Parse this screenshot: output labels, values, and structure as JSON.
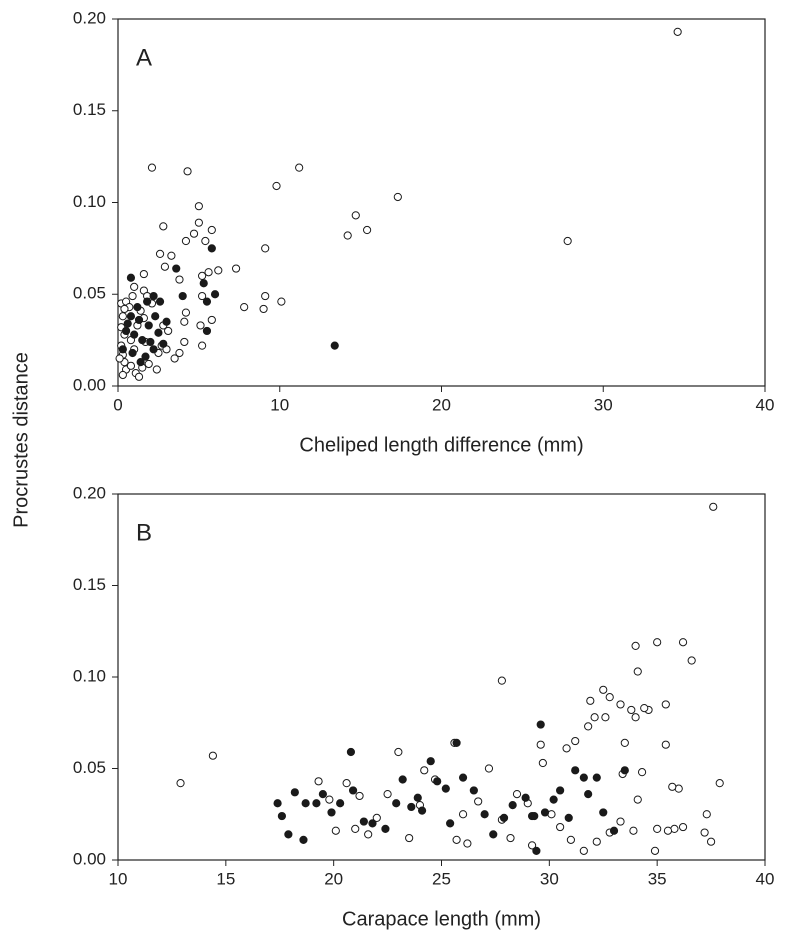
{
  "chart_data": [
    {
      "type": "scatter",
      "panel_label": "A",
      "x_label": "Cheliped length difference (mm)",
      "y_label": "Procrustes distance",
      "xlim": [
        0,
        40
      ],
      "xticks": [
        0,
        10,
        20,
        30,
        40
      ],
      "ylim": [
        0,
        0.2
      ],
      "yticks": [
        {
          "value": 0,
          "label": "0.00"
        },
        {
          "value": 0.05,
          "label": "0.05"
        },
        {
          "value": 0.1,
          "label": "0.10"
        },
        {
          "value": 0.15,
          "label": "0.15"
        },
        {
          "value": 0.2,
          "label": "0.20"
        }
      ],
      "series": [
        {
          "marker": "open",
          "color": "#1a1a1a",
          "x": [
            34.6,
            2.1,
            11.2,
            4.3,
            9.8,
            17.3,
            14.7,
            5.0,
            5.0,
            15.4,
            14.2,
            5.8,
            2.8,
            4.7,
            4.2,
            5.4,
            27.8,
            9.1,
            3.3,
            2.6,
            6.2,
            7.3,
            5.6,
            3.8,
            5.2,
            1.6,
            2.9,
            9.1,
            10.1,
            7.8,
            9.0,
            4.2,
            5.2,
            5.8,
            5.1,
            5.2,
            4.1,
            3.8,
            3.5,
            4.1,
            0.2,
            0.5,
            0.7,
            1.0,
            1.6,
            1.8,
            0.4,
            0.3,
            0.2,
            0.4,
            0.2,
            0.3,
            0.4,
            0.5,
            0.3,
            0.8,
            1.1,
            1.3,
            1.5,
            1.9,
            2.5,
            2.7,
            0.8,
            1.0,
            1.2,
            1.4,
            1.6,
            2.1,
            2.8,
            3.1,
            2.4,
            3.0,
            0.9,
            0.1,
            1.7
          ],
          "values": [
            0.193,
            0.119,
            0.119,
            0.117,
            0.109,
            0.103,
            0.093,
            0.098,
            0.089,
            0.085,
            0.082,
            0.085,
            0.087,
            0.083,
            0.079,
            0.079,
            0.079,
            0.075,
            0.071,
            0.072,
            0.063,
            0.064,
            0.062,
            0.058,
            0.06,
            0.061,
            0.065,
            0.049,
            0.046,
            0.043,
            0.042,
            0.04,
            0.049,
            0.036,
            0.033,
            0.022,
            0.024,
            0.018,
            0.015,
            0.035,
            0.045,
            0.046,
            0.043,
            0.054,
            0.052,
            0.049,
            0.042,
            0.038,
            0.032,
            0.028,
            0.022,
            0.017,
            0.013,
            0.009,
            0.006,
            0.011,
            0.007,
            0.005,
            0.01,
            0.012,
            0.018,
            0.022,
            0.025,
            0.02,
            0.033,
            0.041,
            0.037,
            0.045,
            0.033,
            0.03,
            0.009,
            0.02,
            0.049,
            0.015,
            0.024
          ]
        },
        {
          "marker": "filled",
          "color": "#1a1a1a",
          "x": [
            0.8,
            3.6,
            5.8,
            4.0,
            5.5,
            5.5,
            5.3,
            6.0,
            13.4,
            2.2,
            2.6,
            1.8,
            0.8,
            1.3,
            1.9,
            2.3,
            0.5,
            1.0,
            1.5,
            2.0,
            2.5,
            3.0,
            0.3,
            0.9,
            1.7,
            2.2,
            0.6,
            1.2,
            2.8,
            1.4
          ],
          "values": [
            0.059,
            0.064,
            0.075,
            0.049,
            0.046,
            0.03,
            0.056,
            0.05,
            0.022,
            0.049,
            0.046,
            0.046,
            0.038,
            0.036,
            0.033,
            0.038,
            0.03,
            0.028,
            0.025,
            0.024,
            0.029,
            0.035,
            0.02,
            0.018,
            0.016,
            0.02,
            0.034,
            0.043,
            0.023,
            0.013
          ]
        }
      ]
    },
    {
      "type": "scatter",
      "panel_label": "B",
      "x_label": "Carapace length (mm)",
      "xlim": [
        10,
        40
      ],
      "xticks": [
        10,
        15,
        20,
        25,
        30,
        35,
        40
      ],
      "ylim": [
        0,
        0.2
      ],
      "yticks": [
        {
          "value": 0,
          "label": "0.00"
        },
        {
          "value": 0.05,
          "label": "0.05"
        },
        {
          "value": 0.1,
          "label": "0.10"
        },
        {
          "value": 0.15,
          "label": "0.15"
        },
        {
          "value": 0.2,
          "label": "0.20"
        }
      ],
      "series": [
        {
          "marker": "open",
          "color": "#1a1a1a",
          "x": [
            37.6,
            12.9,
            14.4,
            27.8,
            34.0,
            35.0,
            36.2,
            36.6,
            34.1,
            32.5,
            31.9,
            32.8,
            33.3,
            35.4,
            34.6,
            33.8,
            34.4,
            32.1,
            32.6,
            31.8,
            34.0,
            30.8,
            31.2,
            33.5,
            35.4,
            37.9,
            36.0,
            35.7,
            37.3,
            37.2,
            37.5,
            35.8,
            35.5,
            35.0,
            34.9,
            33.9,
            34.1,
            33.3,
            32.8,
            32.2,
            31.6,
            31.0,
            30.1,
            29.7,
            29.6,
            29.0,
            28.5,
            27.8,
            27.2,
            26.7,
            26.0,
            25.7,
            26.2,
            24.7,
            25.6,
            24.2,
            23.0,
            22.5,
            21.2,
            20.6,
            20.1,
            19.8,
            19.3,
            21.0,
            21.6,
            22.0,
            23.5,
            24.0,
            28.2,
            29.2,
            30.5,
            33.4,
            34.3,
            36.2
          ],
          "values": [
            0.193,
            0.042,
            0.057,
            0.098,
            0.117,
            0.119,
            0.119,
            0.109,
            0.103,
            0.093,
            0.087,
            0.089,
            0.085,
            0.085,
            0.082,
            0.082,
            0.083,
            0.078,
            0.078,
            0.073,
            0.078,
            0.061,
            0.065,
            0.064,
            0.063,
            0.042,
            0.039,
            0.04,
            0.025,
            0.015,
            0.01,
            0.017,
            0.016,
            0.017,
            0.005,
            0.016,
            0.033,
            0.021,
            0.015,
            0.01,
            0.005,
            0.011,
            0.025,
            0.053,
            0.063,
            0.031,
            0.036,
            0.022,
            0.05,
            0.032,
            0.025,
            0.011,
            0.009,
            0.044,
            0.064,
            0.049,
            0.059,
            0.036,
            0.035,
            0.042,
            0.016,
            0.033,
            0.043,
            0.017,
            0.014,
            0.023,
            0.012,
            0.03,
            0.012,
            0.008,
            0.018,
            0.047,
            0.048,
            0.018
          ]
        },
        {
          "marker": "filled",
          "color": "#1a1a1a",
          "x": [
            17.4,
            17.6,
            17.9,
            18.6,
            18.7,
            18.2,
            19.2,
            19.5,
            19.9,
            20.3,
            20.8,
            20.9,
            21.4,
            21.8,
            22.4,
            22.9,
            23.2,
            23.6,
            24.1,
            24.5,
            24.8,
            25.2,
            25.4,
            25.7,
            26.5,
            27.0,
            27.4,
            27.9,
            28.3,
            28.9,
            29.2,
            29.4,
            29.6,
            29.8,
            30.2,
            30.5,
            30.9,
            31.2,
            31.6,
            31.8,
            32.2,
            32.5,
            33.0,
            33.5,
            23.9,
            26.0,
            29.3
          ],
          "values": [
            0.031,
            0.024,
            0.014,
            0.011,
            0.031,
            0.037,
            0.031,
            0.036,
            0.026,
            0.031,
            0.059,
            0.038,
            0.021,
            0.02,
            0.017,
            0.031,
            0.044,
            0.029,
            0.027,
            0.054,
            0.043,
            0.039,
            0.02,
            0.064,
            0.038,
            0.025,
            0.014,
            0.023,
            0.03,
            0.034,
            0.024,
            0.005,
            0.074,
            0.026,
            0.033,
            0.038,
            0.023,
            0.049,
            0.045,
            0.036,
            0.045,
            0.026,
            0.016,
            0.049,
            0.034,
            0.045,
            0.024
          ]
        }
      ]
    }
  ]
}
